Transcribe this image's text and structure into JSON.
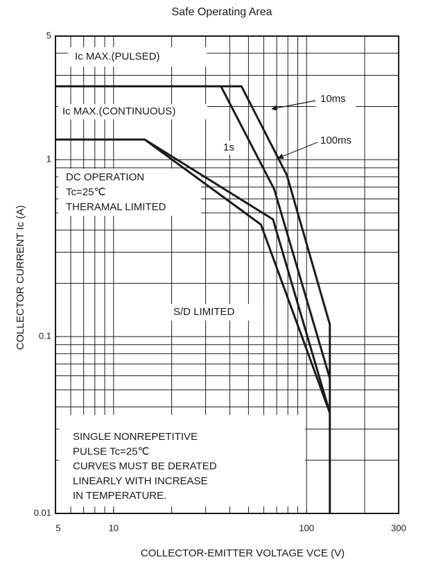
{
  "chart_data": {
    "type": "line",
    "title": "Safe Operating Area",
    "xlabel": "COLLECTOR-EMITTER VOLTAGE VCE (V)",
    "ylabel": "COLLECTOR CURRENT  Ic (A)",
    "xscale": "log",
    "yscale": "log",
    "xlim": [
      5,
      300
    ],
    "ylim": [
      0.01,
      5
    ],
    "xticks": [
      5,
      10,
      100,
      300
    ],
    "yticks": [
      0.01,
      0.1,
      1,
      5
    ],
    "grid": true,
    "xgrid": [
      6,
      7,
      8,
      9,
      10,
      20,
      30,
      40,
      50,
      60,
      70,
      80,
      90,
      100,
      200
    ],
    "ygrid": [
      0.02,
      0.03,
      0.04,
      0.05,
      0.06,
      0.07,
      0.08,
      0.09,
      0.1,
      0.2,
      0.3,
      0.4,
      0.5,
      0.6,
      0.7,
      0.8,
      0.9,
      1,
      2,
      3,
      4
    ],
    "series": [
      {
        "color": "#1a1a1a",
        "x": [
          5,
          46,
          79,
          132,
          132
        ],
        "values": [
          2.6,
          2.6,
          0.82,
          0.117,
          0.01
        ]
      },
      {
        "color": "#1a1a1a",
        "x": [
          36,
          68,
          132
        ],
        "values": [
          2.6,
          0.68,
          0.058
        ]
      },
      {
        "color": "#1a1a1a",
        "x": [
          14.5,
          67,
          132
        ],
        "values": [
          1.3,
          0.46,
          0.037
        ]
      },
      {
        "color": "#1a1a1a",
        "x": [
          5,
          14.5,
          58,
          132
        ],
        "values": [
          1.3,
          1.3,
          0.43,
          0.037
        ]
      }
    ],
    "annotations": [
      "Ic MAX.(PULSED)",
      "Ic MAX.(CONTINUOUS)",
      [
        "DC OPERATION",
        "Tc=25℃",
        "THERAMAL LIMITED"
      ],
      "1s",
      "10ms",
      "100ms",
      "S/D LIMITED",
      [
        "SINGLE NONREPETITIVE",
        "PULSE Tc=25℃",
        "CURVES MUST BE DERATED",
        "LINEARLY WITH INCREASE",
        "IN TEMPERATURE."
      ]
    ]
  }
}
